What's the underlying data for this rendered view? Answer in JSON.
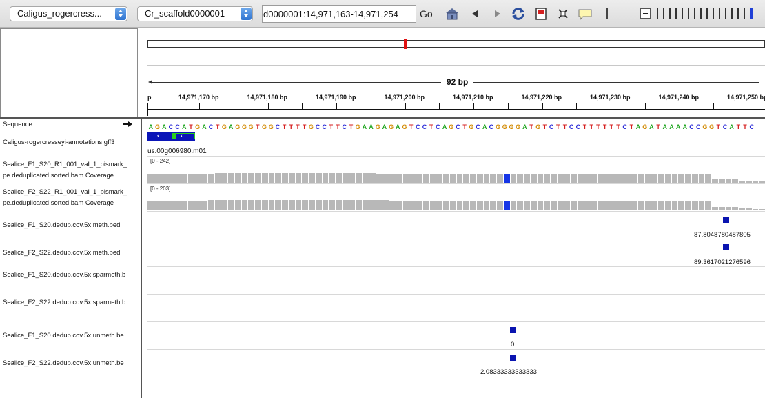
{
  "toolbar": {
    "genome": "Caligus_rogercress...",
    "chromosome": "Cr_scaffold0000001",
    "locus": "d0000001:14,971,163-14,971,254",
    "go_label": "Go",
    "icons": [
      "home-icon",
      "back-icon",
      "forward-icon",
      "refresh-icon",
      "region-of-interest-icon",
      "fit-to-window-icon",
      "popup-info-icon"
    ],
    "zoom_ticks": 16,
    "zoom_current": 15
  },
  "ruler": {
    "span_label": "92 bp",
    "left_partial": "p",
    "ticks": [
      "14,971,170 bp",
      "14,971,180 bp",
      "14,971,190 bp",
      "14,971,200 bp",
      "14,971,210 bp",
      "14,971,220 bp",
      "14,971,230 bp",
      "14,971,240 bp",
      "14,971,250 bp"
    ]
  },
  "sequence": "AGACCATGACTGAGGGTGGCTTTTGCCTTCTGAAGAGAGTCCTCAGCTGCACGGGGATGTCTTCCTTTTTTCTAGATAAAACCGGTCATTC",
  "base_colors": {
    "A": "#1fa51f",
    "C": "#2a2ad8",
    "G": "#d38d08",
    "T": "#d62020"
  },
  "tracks": {
    "sequence": "Sequence",
    "annotations": "Caligus-rogercresseyi-annotations.gff3",
    "gene_label": "us.00g006980.m01",
    "cov1": {
      "name1": "Sealice_F1_S20_R1_001_val_1_bismark_",
      "name2": "pe.deduplicated.sorted.bam Coverage",
      "range": "[0 - 242]"
    },
    "cov2": {
      "name1": "Sealice_F2_S22_R1_001_val_1_bismark_",
      "name2": "pe.deduplicated.sorted.bam Coverage",
      "range": "[0 - 203]"
    },
    "meth1": {
      "name": "Sealice_F1_S20.dedup.cov.5x.meth.bed",
      "value": "87.8048780487805"
    },
    "meth2": {
      "name": "Sealice_F2_S22.dedup.cov.5x.meth.bed",
      "value": "89.3617021276596"
    },
    "sparmeth1": {
      "name": "Sealice_F1_S20.dedup.cov.5x.sparmeth.b"
    },
    "sparmeth2": {
      "name": "Sealice_F2_S22.dedup.cov.5x.sparmeth.b"
    },
    "unmeth1": {
      "name": "Sealice_F1_S20.dedup.cov.5x.unmeth.be",
      "value": "0"
    },
    "unmeth2": {
      "name": "Sealice_F2_S22.dedup.cov.5x.unmeth.be",
      "value": "2.08333333333333"
    }
  }
}
